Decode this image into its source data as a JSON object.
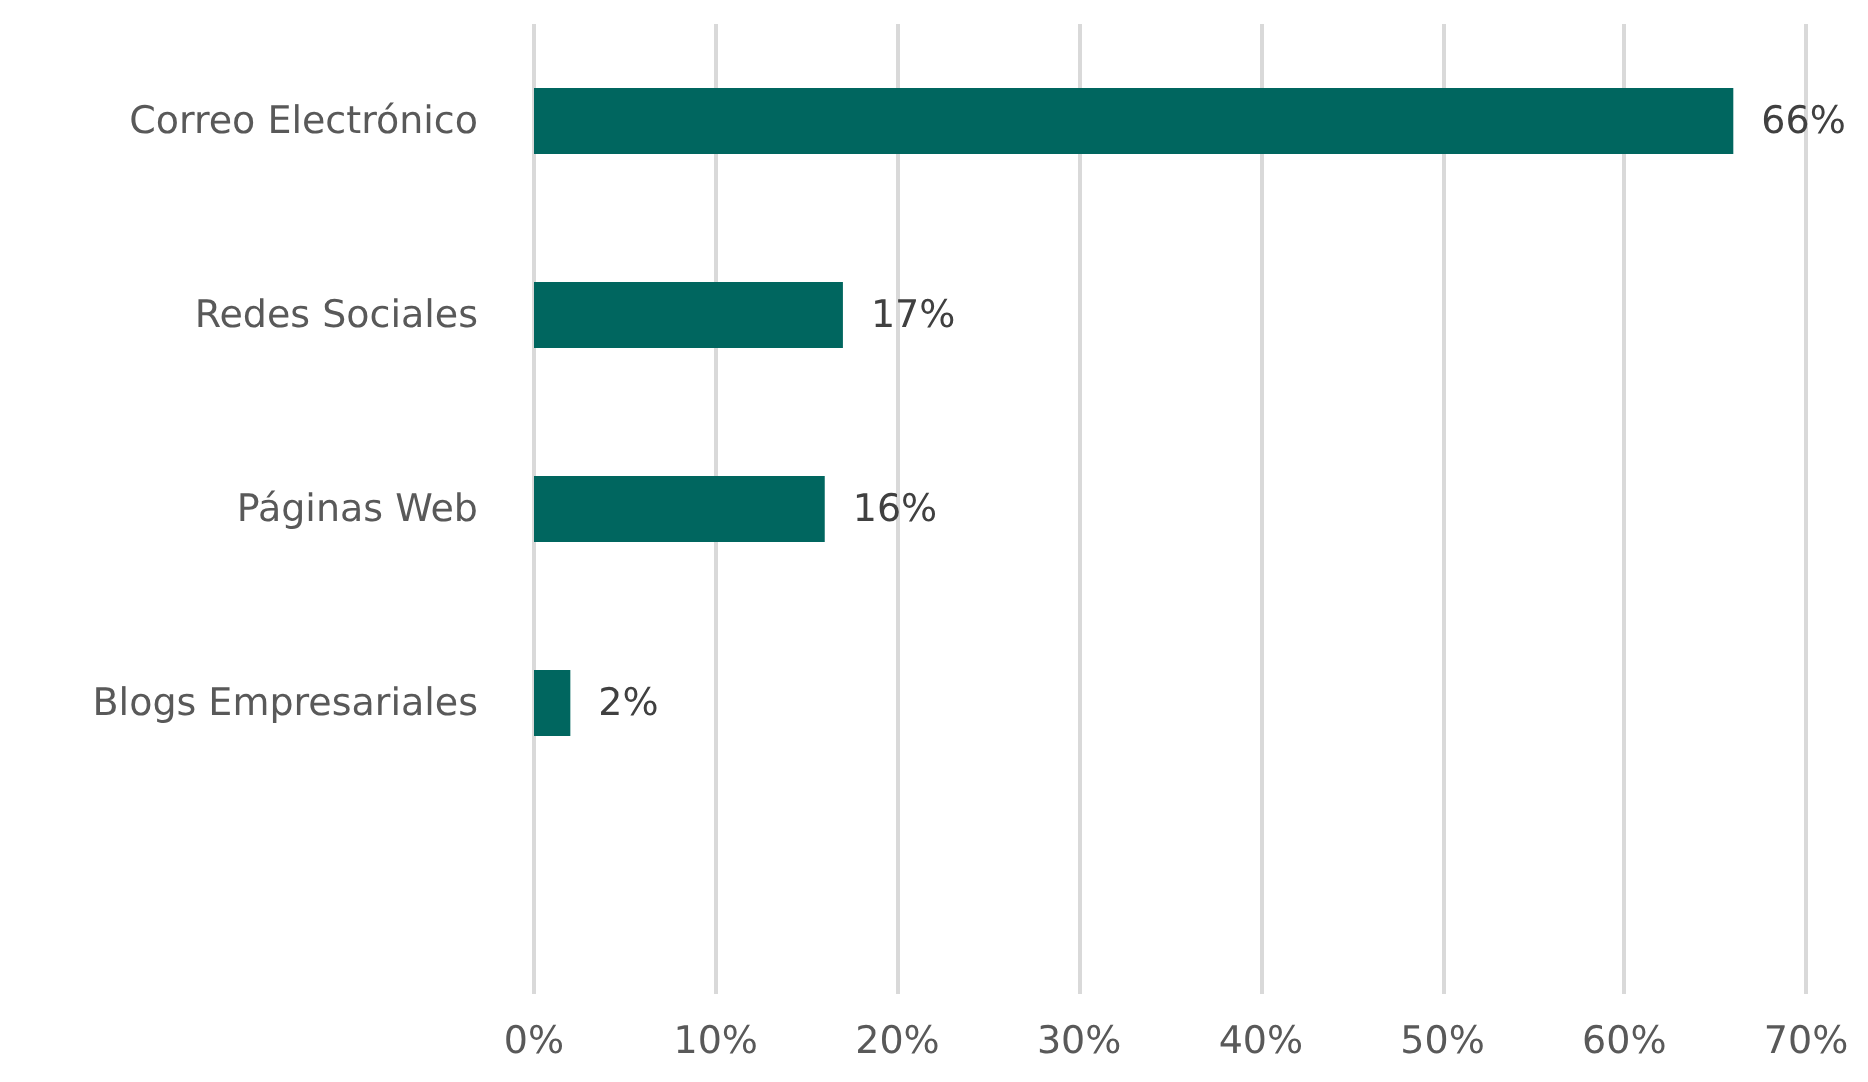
{
  "chart_data": {
    "type": "bar",
    "orientation": "horizontal",
    "categories": [
      "Correo Electrónico",
      "Redes Sociales",
      "Páginas Web",
      "Blogs Empresariales",
      null
    ],
    "values": [
      66,
      17,
      16,
      2,
      null
    ],
    "value_labels": [
      "66%",
      "17%",
      "16%",
      "2%",
      null
    ],
    "color": "#00665f",
    "xlim": [
      0,
      70
    ],
    "xticks": [
      {
        "value": 0,
        "label": "0%"
      },
      {
        "value": 10,
        "label": "10%"
      },
      {
        "value": 20,
        "label": "20%"
      },
      {
        "value": 30,
        "label": "30%"
      },
      {
        "value": 40,
        "label": "40%"
      },
      {
        "value": 50,
        "label": "50%"
      },
      {
        "value": 60,
        "label": "60%"
      },
      {
        "value": 70,
        "label": "70%"
      }
    ],
    "grid": "x"
  }
}
